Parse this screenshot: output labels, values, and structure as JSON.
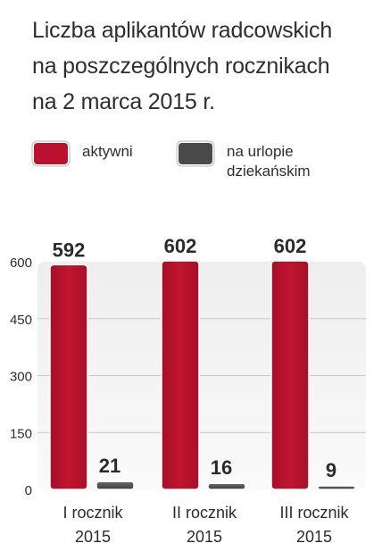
{
  "chart_data": {
    "type": "bar",
    "title_lines": [
      "Liczba aplikantów radcowskich",
      "na poszczególnych rocznikach",
      "na 2 marca 2015 r."
    ],
    "categories": [
      {
        "line1": "I rocznik",
        "line2": "2015"
      },
      {
        "line1": "II rocznik",
        "line2": "2015"
      },
      {
        "line1": "III rocznik",
        "line2": "2015"
      }
    ],
    "series": [
      {
        "name": "aktywni",
        "color": "#b8122e",
        "values": [
          592,
          602,
          602
        ]
      },
      {
        "name_lines": [
          "na urlopie",
          "dziekańskim"
        ],
        "color": "#4a4a4a",
        "values": [
          21,
          16,
          9
        ]
      }
    ],
    "ylim": [
      0,
      600
    ],
    "yticks": [
      0,
      150,
      300,
      450,
      600
    ],
    "grid": true,
    "legend_position": "top-left",
    "xlabel": "",
    "ylabel": ""
  }
}
